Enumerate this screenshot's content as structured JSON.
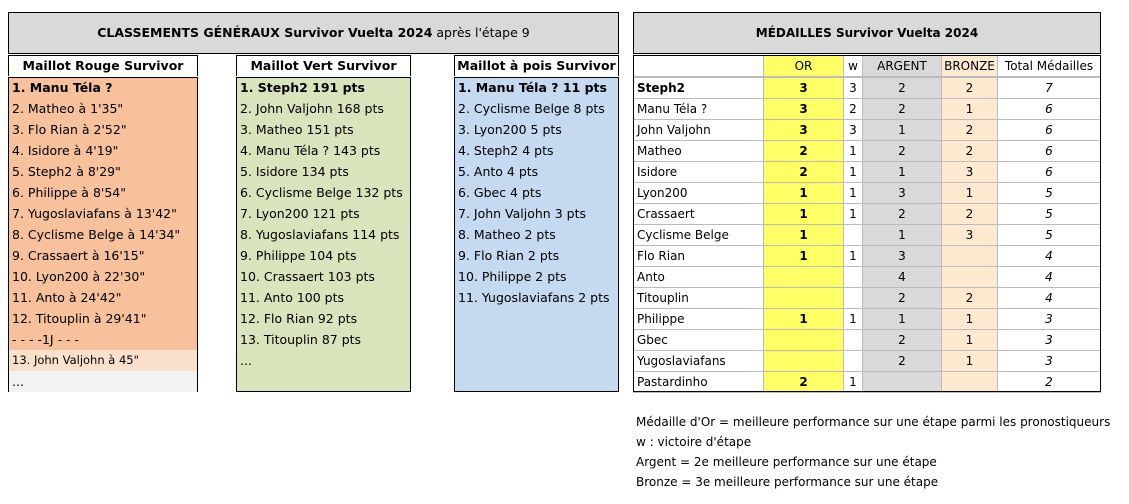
{
  "rankings": {
    "title": "CLASSEMENTS GÉNÉRAUX Survivor Vuelta 2024",
    "subtitle": "après l'étape 9",
    "columns": [
      {
        "header": "Maillot Rouge Survivor",
        "items": [
          "1. Manu Téla ?",
          "2. Matheo à 1'35\"",
          "3. Flo Rian à 2'52\"",
          "4. Isidore à 4'19\"",
          "5. Steph2 à 8'29\"",
          "6. Philippe à 8'54\"",
          "7. Yugoslaviafans à 13'42\"",
          "8. Cyclisme Belge à 14'34\"",
          "9. Crassaert à 16'15\"",
          "10. Lyon200 à 22'30\"",
          "11. Anto à 24'42\"",
          "12. Titouplin à 29'41\"",
          "- - - -1J - - -",
          "13. John Valjohn à 45\"",
          "..."
        ]
      },
      {
        "header": "Maillot Vert Survivor",
        "items": [
          "1. Steph2 191 pts",
          "2. John Valjohn 168 pts",
          "3. Matheo 151 pts",
          "4. Manu Téla ? 143 pts",
          "5. Isidore 134 pts",
          "6. Cyclisme Belge 132 pts",
          "7. Lyon200 121 pts",
          "8. Yugoslaviafans 114 pts",
          "9. Philippe 104 pts",
          "10. Crassaert 103 pts",
          "11. Anto 100 pts",
          "12. Flo Rian 92 pts",
          "13. Titouplin 87 pts",
          "..."
        ]
      },
      {
        "header": "Maillot à pois Survivor",
        "items": [
          "1. Manu Téla ? 11 pts",
          "2. Cyclisme Belge 8 pts",
          "3. Lyon200 5 pts",
          "4. Steph2 4 pts",
          "5. Anto 4 pts",
          "6. Gbec 4 pts",
          "7. John Valjohn 3 pts",
          "8. Matheo 2 pts",
          "9. Flo Rian 2 pts",
          "10. Philippe 2 pts",
          "11. Yugoslaviafans 2 pts"
        ]
      }
    ]
  },
  "medals": {
    "title": "MÉDAILLES Survivor Vuelta 2024",
    "headers": [
      "OR",
      "w",
      "ARGENT",
      "BRONZE",
      "Total Médailles"
    ],
    "rows": [
      [
        "Steph2",
        3,
        3,
        2,
        2,
        7
      ],
      [
        "Manu Téla ?",
        3,
        2,
        2,
        1,
        6
      ],
      [
        "John Valjohn",
        3,
        3,
        1,
        2,
        6
      ],
      [
        "Matheo",
        2,
        1,
        2,
        2,
        6
      ],
      [
        "Isidore",
        2,
        1,
        1,
        3,
        6
      ],
      [
        "Lyon200",
        1,
        1,
        3,
        1,
        5
      ],
      [
        "Crassaert",
        1,
        1,
        2,
        2,
        5
      ],
      [
        "Cyclisme Belge",
        1,
        null,
        1,
        3,
        5
      ],
      [
        "Flo Rian",
        1,
        1,
        3,
        null,
        4
      ],
      [
        "Anto",
        null,
        null,
        4,
        null,
        4
      ],
      [
        "Titouplin",
        null,
        null,
        2,
        2,
        4
      ],
      [
        "Philippe",
        1,
        1,
        1,
        1,
        3
      ],
      [
        "Gbec",
        null,
        null,
        2,
        1,
        3
      ],
      [
        "Yugoslaviafans",
        null,
        null,
        2,
        1,
        3
      ],
      [
        "Pastardinho",
        2,
        1,
        null,
        null,
        2
      ]
    ]
  },
  "notes": [
    "Médaille d'Or = meilleure performance sur une étape parmi les pronostiqueurs",
    "w : victoire d'étape",
    "Argent = 2e meilleure performance sur une étape",
    "Bronze = 3e meilleure performance sur une étape"
  ]
}
